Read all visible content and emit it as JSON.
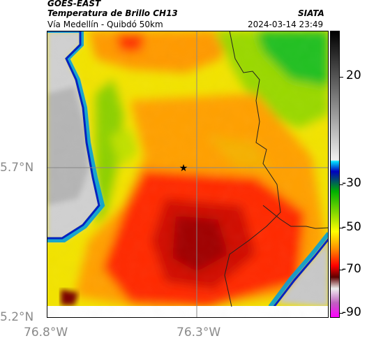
{
  "header": {
    "satellite": "GOES-EAST",
    "product": "Temperatura de Brillo CH13",
    "region": "Vía Medellín - Quibdó 50km",
    "agency": "SIATA",
    "timestamp": "2024-03-14 23:49"
  },
  "axes": {
    "y_labels": [
      "5.7°N",
      "5.2°N"
    ],
    "x_labels": [
      "76.8°W",
      "76.3°W"
    ]
  },
  "colorbar": {
    "ticks": [
      "20",
      "-30",
      "-50",
      "-70",
      "-90"
    ]
  },
  "marker": {
    "icon": "star-icon",
    "color": "#000000"
  }
}
